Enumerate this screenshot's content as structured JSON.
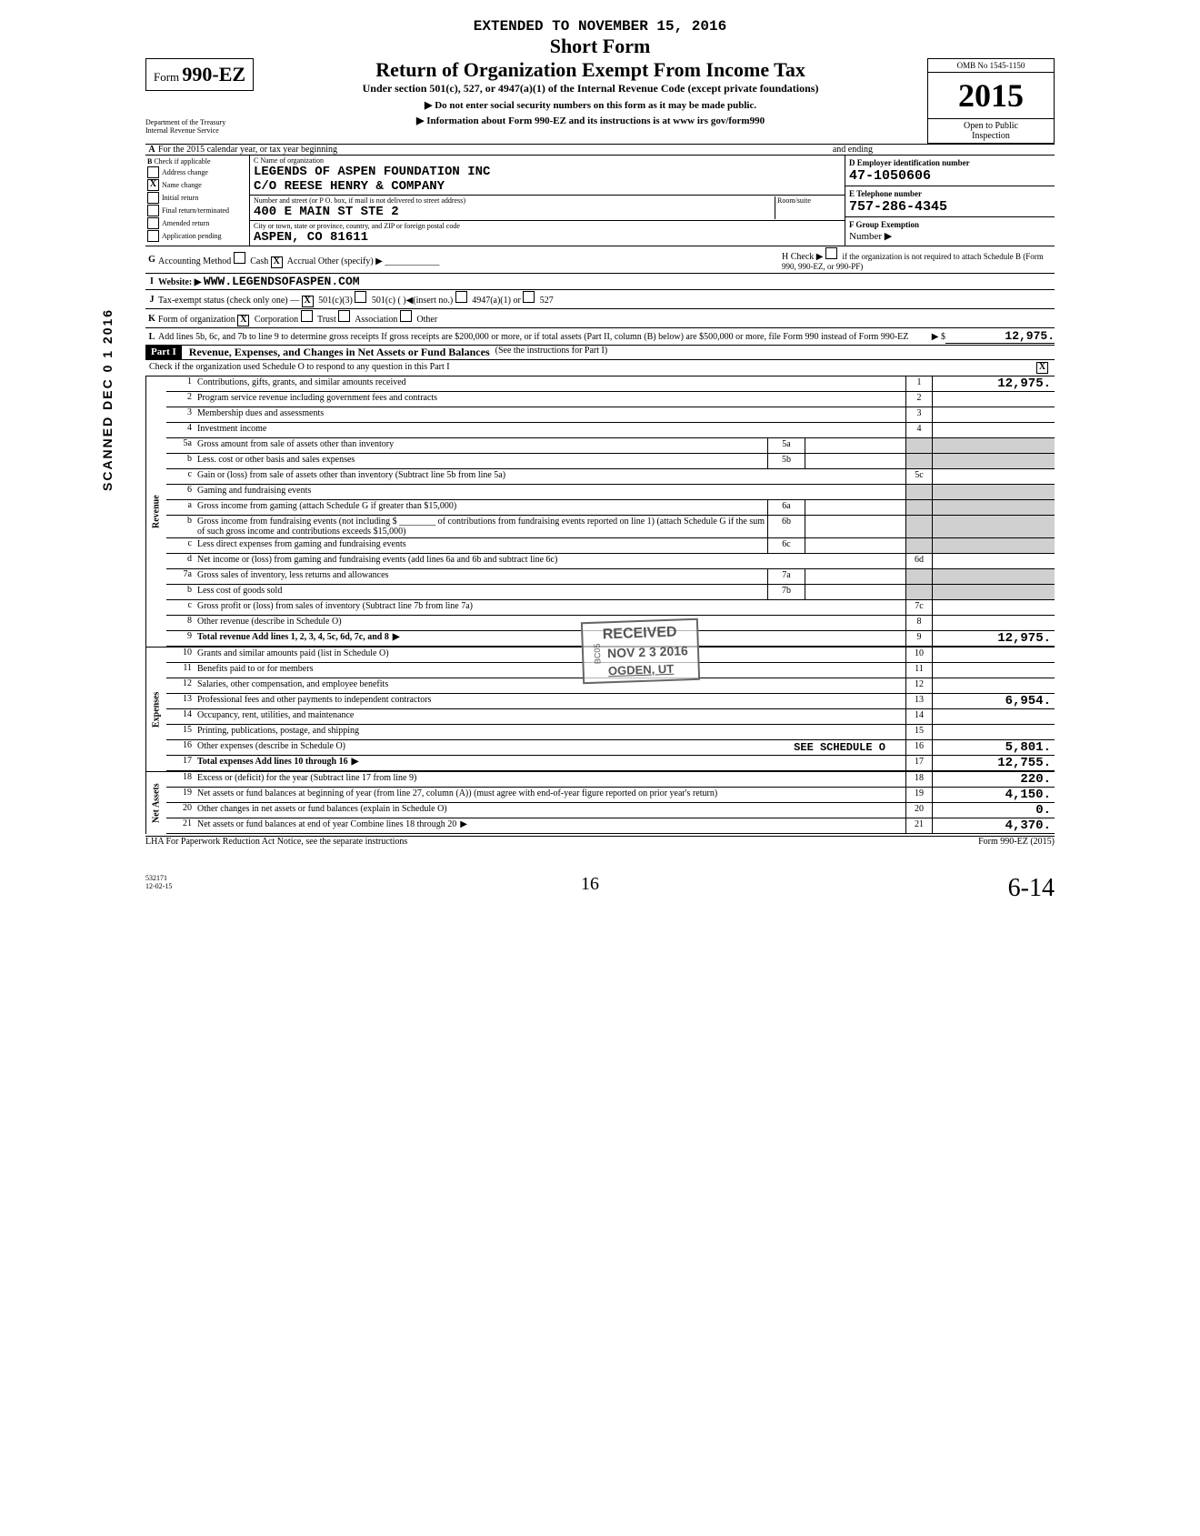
{
  "side_stamp": "SCANNED DEC 0 1 2016",
  "header": {
    "extended": "EXTENDED TO NOVEMBER 15, 2016",
    "short_form": "Short Form",
    "form_prefix": "Form",
    "form_number": "990-EZ",
    "title": "Return of Organization Exempt From Income Tax",
    "subtitle": "Under section 501(c), 527, or 4947(a)(1) of the Internal Revenue Code (except private foundations)",
    "warn1": "▶ Do not enter social security numbers on this form as it may be made public.",
    "warn2": "▶ Information about Form 990-EZ and its instructions is at  www irs gov/form990",
    "omb": "OMB No 1545-1150",
    "year": "2015",
    "public1": "Open to Public",
    "public2": "Inspection",
    "dept1": "Department of the Treasury",
    "dept2": "Internal Revenue Service"
  },
  "line_a": "For the 2015 calendar year, or tax year beginning",
  "line_a_end": "and ending",
  "check_b": {
    "label": "Check if applicable",
    "addr": "Address change",
    "name": "Name change",
    "name_x": "X",
    "init": "Initial return",
    "final": "Final return/terminated",
    "amend": "Amended return",
    "app": "Application pending"
  },
  "org": {
    "c_label": "C Name of organization",
    "name1": "LEGENDS OF ASPEN FOUNDATION INC",
    "name2": "C/O REESE HENRY & COMPANY",
    "addr_label": "Number and street (or P O. box, if mail is not delivered to street address)",
    "room_label": "Room/suite",
    "addr": "400 E MAIN ST   STE 2",
    "city_label": "City or town, state or province, country, and ZIP or foreign postal code",
    "city": "ASPEN, CO   81611"
  },
  "right": {
    "d_label": "D Employer identification number",
    "ein": "47-1050606",
    "e_label": "E Telephone number",
    "phone": "757-286-4345",
    "f_label": "F Group Exemption",
    "f_num": "Number ▶",
    "h_label": "H Check ▶",
    "h_text": "if the organization is not required to attach Schedule B (Form 990, 990-EZ, or 990-PF)"
  },
  "g": {
    "label": "Accounting Method",
    "cash": "Cash",
    "accrual": "Accrual",
    "accrual_x": "X",
    "other": "Other (specify) ▶"
  },
  "i": {
    "label": "Website: ▶",
    "val": "WWW.LEGENDSOFASPEN.COM"
  },
  "j": {
    "label": "Tax-exempt status (check only one) —",
    "x": "X",
    "c3": "501(c)(3)",
    "c": "501(c) (",
    "insert": ")◀(insert no.)",
    "a1": "4947(a)(1) or",
    "s527": "527"
  },
  "k": {
    "label": "Form of organization",
    "x": "X",
    "corp": "Corporation",
    "trust": "Trust",
    "assoc": "Association",
    "other": "Other"
  },
  "l": {
    "text": "Add lines 5b, 6c, and 7b to line 9 to determine gross receipts  If gross receipts are $200,000 or more, or if total assets (Part II, column (B) below) are $500,000 or more, file Form 990 instead of Form 990-EZ",
    "arrow": "▶  $",
    "val": "12,975."
  },
  "part1": {
    "label": "Part I",
    "title": "Revenue, Expenses, and Changes in Net Assets or Fund Balances",
    "note": "(See the instructions for Part I)",
    "check_text": "Check if the organization used Schedule O to respond to any question in this Part I",
    "check_x": "X"
  },
  "revenue_label": "Revenue",
  "expenses_label": "Expenses",
  "netassets_label": "Net Assets",
  "rows": {
    "r1": {
      "n": "1",
      "d": "Contributions, gifts, grants, and similar amounts received",
      "c": "1",
      "v": "12,975."
    },
    "r2": {
      "n": "2",
      "d": "Program service revenue including government fees and contracts",
      "c": "2",
      "v": ""
    },
    "r3": {
      "n": "3",
      "d": "Membership dues and assessments",
      "c": "3",
      "v": ""
    },
    "r4": {
      "n": "4",
      "d": "Investment income",
      "c": "4",
      "v": ""
    },
    "r5a": {
      "n": "5a",
      "d": "Gross amount from sale of assets other than inventory",
      "s": "5a"
    },
    "r5b": {
      "n": "b",
      "d": "Less. cost or other basis and sales expenses",
      "s": "5b"
    },
    "r5c": {
      "n": "c",
      "d": "Gain or (loss) from sale of assets other than inventory (Subtract line 5b from line 5a)",
      "c": "5c",
      "v": ""
    },
    "r6": {
      "n": "6",
      "d": "Gaming and fundraising events"
    },
    "r6a": {
      "n": "a",
      "d": "Gross income from gaming (attach Schedule G if greater than $15,000)",
      "s": "6a"
    },
    "r6b": {
      "n": "b",
      "d": "Gross income from fundraising events (not including $ ________ of contributions from fundraising events reported on line 1) (attach Schedule G if the sum of such gross income and contributions exceeds $15,000)",
      "s": "6b"
    },
    "r6c": {
      "n": "c",
      "d": "Less  direct expenses from gaming and fundraising events",
      "s": "6c"
    },
    "r6d": {
      "n": "d",
      "d": "Net income or (loss) from gaming and fundraising events (add lines 6a and 6b and subtract line 6c)",
      "c": "6d",
      "v": ""
    },
    "r7a": {
      "n": "7a",
      "d": "Gross sales of inventory, less returns and allowances",
      "s": "7a"
    },
    "r7b": {
      "n": "b",
      "d": "Less  cost of goods sold",
      "s": "7b"
    },
    "r7c": {
      "n": "c",
      "d": "Gross profit or (loss) from sales of inventory (Subtract line 7b from line 7a)",
      "c": "7c",
      "v": ""
    },
    "r8": {
      "n": "8",
      "d": "Other revenue (describe in Schedule O)",
      "c": "8",
      "v": ""
    },
    "r9": {
      "n": "9",
      "d": "Total revenue  Add lines 1, 2, 3, 4, 5c, 6d, 7c, and 8",
      "c": "9",
      "v": "12,975."
    },
    "r10": {
      "n": "10",
      "d": "Grants and similar amounts paid (list in Schedule O)",
      "c": "10",
      "v": ""
    },
    "r11": {
      "n": "11",
      "d": "Benefits paid to or for members",
      "c": "11",
      "v": ""
    },
    "r12": {
      "n": "12",
      "d": "Salaries, other compensation, and employee benefits",
      "c": "12",
      "v": ""
    },
    "r13": {
      "n": "13",
      "d": "Professional fees and other payments to independent contractors",
      "c": "13",
      "v": "6,954."
    },
    "r14": {
      "n": "14",
      "d": "Occupancy, rent, utilities, and maintenance",
      "c": "14",
      "v": ""
    },
    "r15": {
      "n": "15",
      "d": "Printing, publications, postage, and shipping",
      "c": "15",
      "v": ""
    },
    "r16": {
      "n": "16",
      "d": "Other expenses (describe in Schedule O)",
      "c": "16",
      "v": "5,801."
    },
    "r16_extra": "SEE SCHEDULE O",
    "r17": {
      "n": "17",
      "d": "Total expenses  Add lines 10 through 16",
      "c": "17",
      "v": "12,755."
    },
    "r18": {
      "n": "18",
      "d": "Excess or (deficit) for the year (Subtract line 17 from line 9)",
      "c": "18",
      "v": "220."
    },
    "r19": {
      "n": "19",
      "d": "Net assets or fund balances at beginning of year (from line 27, column (A)) (must agree with end-of-year figure reported on prior year's return)",
      "c": "19",
      "v": "4,150."
    },
    "r20": {
      "n": "20",
      "d": "Other changes in net assets or fund balances (explain in Schedule O)",
      "c": "20",
      "v": "0."
    },
    "r21": {
      "n": "21",
      "d": "Net assets or fund balances at end of year  Combine lines 18 through 20",
      "c": "21",
      "v": "4,370."
    }
  },
  "stamp": {
    "received": "RECEIVED",
    "bc": "BC05",
    "date": "NOV 2 3 2016",
    "loc": "OGDEN, UT"
  },
  "footer": {
    "lha": "LHA  For Paperwork Reduction Act Notice, see the separate instructions",
    "form": "Form 990-EZ (2015)",
    "code": "532171\n12-02-15",
    "hw_center": "16",
    "hw_right": "6-14"
  }
}
